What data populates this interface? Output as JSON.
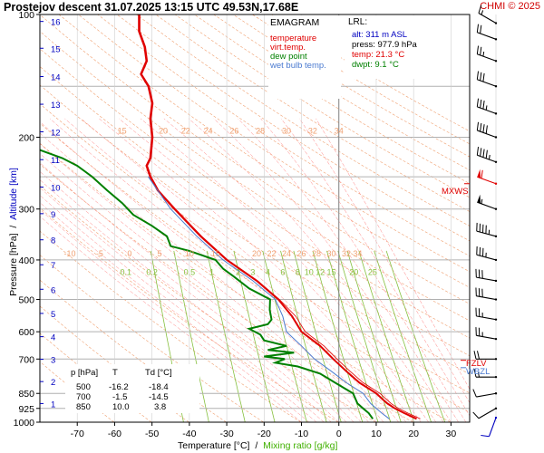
{
  "header": {
    "title": "Prostejov   descent  31.07.2025 13:15 UTC  49.53N,17.68E",
    "credit": "CHMI © 2025"
  },
  "colors": {
    "temperature": "#e00000",
    "virt_temp": "#ff4040",
    "dew_point": "#008000",
    "wet_bulb": "#4a7ad0",
    "dry_adiabat": "#f0a070",
    "moist_adiabat": "#ff8080",
    "mixing_ratio": "#88c040",
    "isobar": "#b0b0b0",
    "isotherm": "#d0d0d0",
    "wind": "#000000"
  },
  "legend": {
    "heading": "EMAGRAM",
    "items": [
      {
        "label": "temperature",
        "color": "#e00000"
      },
      {
        "label": "virt.temp.",
        "color": "#e00000"
      },
      {
        "label": "dew point",
        "color": "#008000"
      },
      {
        "label": "wet bulb temp.",
        "color": "#4a7ad0"
      }
    ]
  },
  "lrl": {
    "heading": "LRL:",
    "alt": "alt: 311 m ASL",
    "press": "press: 977.9 hPa",
    "temp": "temp: 21.3 °C",
    "dwpt": "dwpt: 9.1 °C"
  },
  "table": {
    "headers": [
      "p [hPa]",
      "T",
      "Td [°C]"
    ],
    "rows": [
      [
        "500",
        "-16.2",
        "-18.4"
      ],
      [
        "700",
        "-1.5",
        "-14.5"
      ],
      [
        "850",
        "10.0",
        "3.8"
      ]
    ]
  },
  "markers": {
    "mxws": "MXWS",
    "fzlv": "FZLV",
    "wbzl": "WBZL"
  },
  "chart_data": {
    "type": "line",
    "title": "Prostejov   descent  31.07.2025 13:15 UTC  49.53N,17.68E",
    "xlabel": "Temperature [°C]",
    "xlabel_extra": "Mixing ratio [g/kg]",
    "ylabel": "Pressure [hPa]",
    "ylabel_extra": "Altitude [km]",
    "xlim": [
      -80,
      35
    ],
    "ylim": [
      1000,
      100
    ],
    "y_scale": "log",
    "x_ticks": [
      "-70",
      "-60",
      "-50",
      "-40",
      "-30",
      "-20",
      "-10",
      "0",
      "10",
      "20",
      "30"
    ],
    "y_ticks": [
      {
        "p": 100,
        "label": "100"
      },
      {
        "p": 200,
        "label": "200"
      },
      {
        "p": 300,
        "label": "300"
      },
      {
        "p": 400,
        "label": "400"
      },
      {
        "p": 500,
        "label": "500"
      },
      {
        "p": 600,
        "label": "600"
      },
      {
        "p": 700,
        "label": "700"
      },
      {
        "p": 850,
        "label": "850"
      },
      {
        "p": 925,
        "label": "925"
      },
      {
        "p": 1000,
        "label": "1000"
      }
    ],
    "altitude_ticks": [
      {
        "km": 1,
        "p": 900
      },
      {
        "km": 2,
        "p": 795
      },
      {
        "km": 3,
        "p": 701
      },
      {
        "km": 4,
        "p": 617
      },
      {
        "km": 5,
        "p": 541
      },
      {
        "km": 6,
        "p": 472
      },
      {
        "km": 7,
        "p": 411
      },
      {
        "km": 8,
        "p": 357
      },
      {
        "km": 9,
        "p": 308
      },
      {
        "km": 10,
        "p": 265
      },
      {
        "km": 11,
        "p": 227
      },
      {
        "km": 12,
        "p": 194
      },
      {
        "km": 13,
        "p": 166
      },
      {
        "km": 14,
        "p": 142
      },
      {
        "km": 15,
        "p": 121
      },
      {
        "km": 16,
        "p": 104
      }
    ],
    "dry_adiabat_labels": [
      {
        "label": "15",
        "p": 200
      },
      {
        "label": "20",
        "p": 200
      },
      {
        "label": "22",
        "p": 200
      },
      {
        "label": "24",
        "p": 200
      },
      {
        "label": "26",
        "p": 200
      },
      {
        "label": "28",
        "p": 200
      },
      {
        "label": "30",
        "p": 200
      },
      {
        "label": "32",
        "p": 200
      },
      {
        "label": "34",
        "p": 200
      }
    ],
    "moist_adiabat_labels": [
      "-10",
      "-5",
      "0",
      "5",
      "10",
      "15",
      "20",
      "22",
      "24",
      "26",
      "28",
      "30",
      "32",
      "34"
    ],
    "mixing_ratio_labels": [
      "0.1",
      "0.2",
      "0.5",
      "1",
      "2",
      "3",
      "4",
      "6",
      "8",
      "10",
      "12",
      "15",
      "20",
      "25"
    ],
    "series": [
      {
        "name": "temperature",
        "color": "#e00000",
        "points": [
          {
            "p": 981,
            "t": 20.8
          },
          {
            "p": 950,
            "t": 17.5
          },
          {
            "p": 925,
            "t": 15.0
          },
          {
            "p": 900,
            "t": 13.0
          },
          {
            "p": 875,
            "t": 11.5
          },
          {
            "p": 850,
            "t": 10.0
          },
          {
            "p": 800,
            "t": 5.5
          },
          {
            "p": 750,
            "t": 2.0
          },
          {
            "p": 700,
            "t": -1.5
          },
          {
            "p": 650,
            "t": -5.0
          },
          {
            "p": 600,
            "t": -10.0
          },
          {
            "p": 550,
            "t": -12.5
          },
          {
            "p": 500,
            "t": -16.2
          },
          {
            "p": 450,
            "t": -22.0
          },
          {
            "p": 400,
            "t": -30.0
          },
          {
            "p": 350,
            "t": -37.0
          },
          {
            "p": 300,
            "t": -44.0
          },
          {
            "p": 270,
            "t": -48.5
          },
          {
            "p": 250,
            "t": -50.5
          },
          {
            "p": 235,
            "t": -51.5
          },
          {
            "p": 225,
            "t": -50.5
          },
          {
            "p": 200,
            "t": -50.0
          },
          {
            "p": 180,
            "t": -50.5
          },
          {
            "p": 165,
            "t": -50.0
          },
          {
            "p": 150,
            "t": -51.0
          },
          {
            "p": 140,
            "t": -53.0
          },
          {
            "p": 130,
            "t": -51.5
          },
          {
            "p": 120,
            "t": -52.0
          },
          {
            "p": 110,
            "t": -53.5
          },
          {
            "p": 100,
            "t": -53.5
          }
        ]
      },
      {
        "name": "dew point",
        "color": "#008000",
        "points": [
          {
            "p": 981,
            "t": 9.1
          },
          {
            "p": 950,
            "t": 8.0
          },
          {
            "p": 925,
            "t": 6.5
          },
          {
            "p": 900,
            "t": 5.0
          },
          {
            "p": 850,
            "t": 3.8
          },
          {
            "p": 800,
            "t": -1.0
          },
          {
            "p": 760,
            "t": -5.0
          },
          {
            "p": 730,
            "t": -11.0
          },
          {
            "p": 715,
            "t": -17.0
          },
          {
            "p": 700,
            "t": -14.5
          },
          {
            "p": 690,
            "t": -20.0
          },
          {
            "p": 675,
            "t": -12.0
          },
          {
            "p": 665,
            "t": -19.0
          },
          {
            "p": 650,
            "t": -14.0
          },
          {
            "p": 630,
            "t": -20.0
          },
          {
            "p": 610,
            "t": -21.0
          },
          {
            "p": 590,
            "t": -24.0
          },
          {
            "p": 575,
            "t": -19.0
          },
          {
            "p": 560,
            "t": -18.0
          },
          {
            "p": 530,
            "t": -18.5
          },
          {
            "p": 500,
            "t": -18.4
          },
          {
            "p": 470,
            "t": -24.0
          },
          {
            "p": 440,
            "t": -28.0
          },
          {
            "p": 420,
            "t": -31.0
          },
          {
            "p": 400,
            "t": -33.0
          },
          {
            "p": 380,
            "t": -40.0
          },
          {
            "p": 370,
            "t": -45.0
          },
          {
            "p": 350,
            "t": -46.0
          },
          {
            "p": 330,
            "t": -50.0
          },
          {
            "p": 310,
            "t": -55.0
          },
          {
            "p": 290,
            "t": -58.0
          },
          {
            "p": 270,
            "t": -62.0
          },
          {
            "p": 250,
            "t": -66.0
          },
          {
            "p": 235,
            "t": -70.0
          },
          {
            "p": 225,
            "t": -74.0
          },
          {
            "p": 215,
            "t": -80.0
          }
        ]
      },
      {
        "name": "wet bulb temp.",
        "color": "#4a7ad0",
        "points": [
          {
            "p": 981,
            "t": 13.5
          },
          {
            "p": 950,
            "t": 11.5
          },
          {
            "p": 925,
            "t": 10.0
          },
          {
            "p": 900,
            "t": 8.5
          },
          {
            "p": 850,
            "t": 6.5
          },
          {
            "p": 800,
            "t": 2.0
          },
          {
            "p": 750,
            "t": -2.0
          },
          {
            "p": 700,
            "t": -6.5
          },
          {
            "p": 650,
            "t": -10.0
          },
          {
            "p": 600,
            "t": -14.0
          },
          {
            "p": 550,
            "t": -15.0
          },
          {
            "p": 500,
            "t": -17.0
          },
          {
            "p": 450,
            "t": -23.0
          },
          {
            "p": 400,
            "t": -31.0
          },
          {
            "p": 350,
            "t": -38.0
          },
          {
            "p": 300,
            "t": -45.0
          },
          {
            "p": 250,
            "t": -51.0
          }
        ]
      }
    ],
    "wind_barbs": [
      {
        "p": 975,
        "dir": 200,
        "spd": 10,
        "color": "#0000c0"
      },
      {
        "p": 925,
        "dir": 240,
        "spd": 10
      },
      {
        "p": 850,
        "dir": 260,
        "spd": 10
      },
      {
        "p": 775,
        "dir": 270,
        "spd": 15
      },
      {
        "p": 700,
        "dir": 270,
        "spd": 20
      },
      {
        "p": 625,
        "dir": 280,
        "spd": 25
      },
      {
        "p": 560,
        "dir": 280,
        "spd": 25
      },
      {
        "p": 500,
        "dir": 280,
        "spd": 30
      },
      {
        "p": 450,
        "dir": 280,
        "spd": 30
      },
      {
        "p": 400,
        "dir": 285,
        "spd": 35
      },
      {
        "p": 350,
        "dir": 285,
        "spd": 45
      },
      {
        "p": 300,
        "dir": 290,
        "spd": 55
      },
      {
        "p": 260,
        "dir": 290,
        "spd": 60,
        "color": "#e00000"
      },
      {
        "p": 230,
        "dir": 290,
        "spd": 45
      },
      {
        "p": 200,
        "dir": 290,
        "spd": 40
      },
      {
        "p": 175,
        "dir": 290,
        "spd": 35
      },
      {
        "p": 150,
        "dir": 290,
        "spd": 30
      },
      {
        "p": 130,
        "dir": 290,
        "spd": 25
      },
      {
        "p": 115,
        "dir": 290,
        "spd": 20
      },
      {
        "p": 105,
        "dir": 300,
        "spd": 15
      }
    ],
    "mxws_p": 260,
    "fzlv_p": 705,
    "wbzl_p": 735
  }
}
